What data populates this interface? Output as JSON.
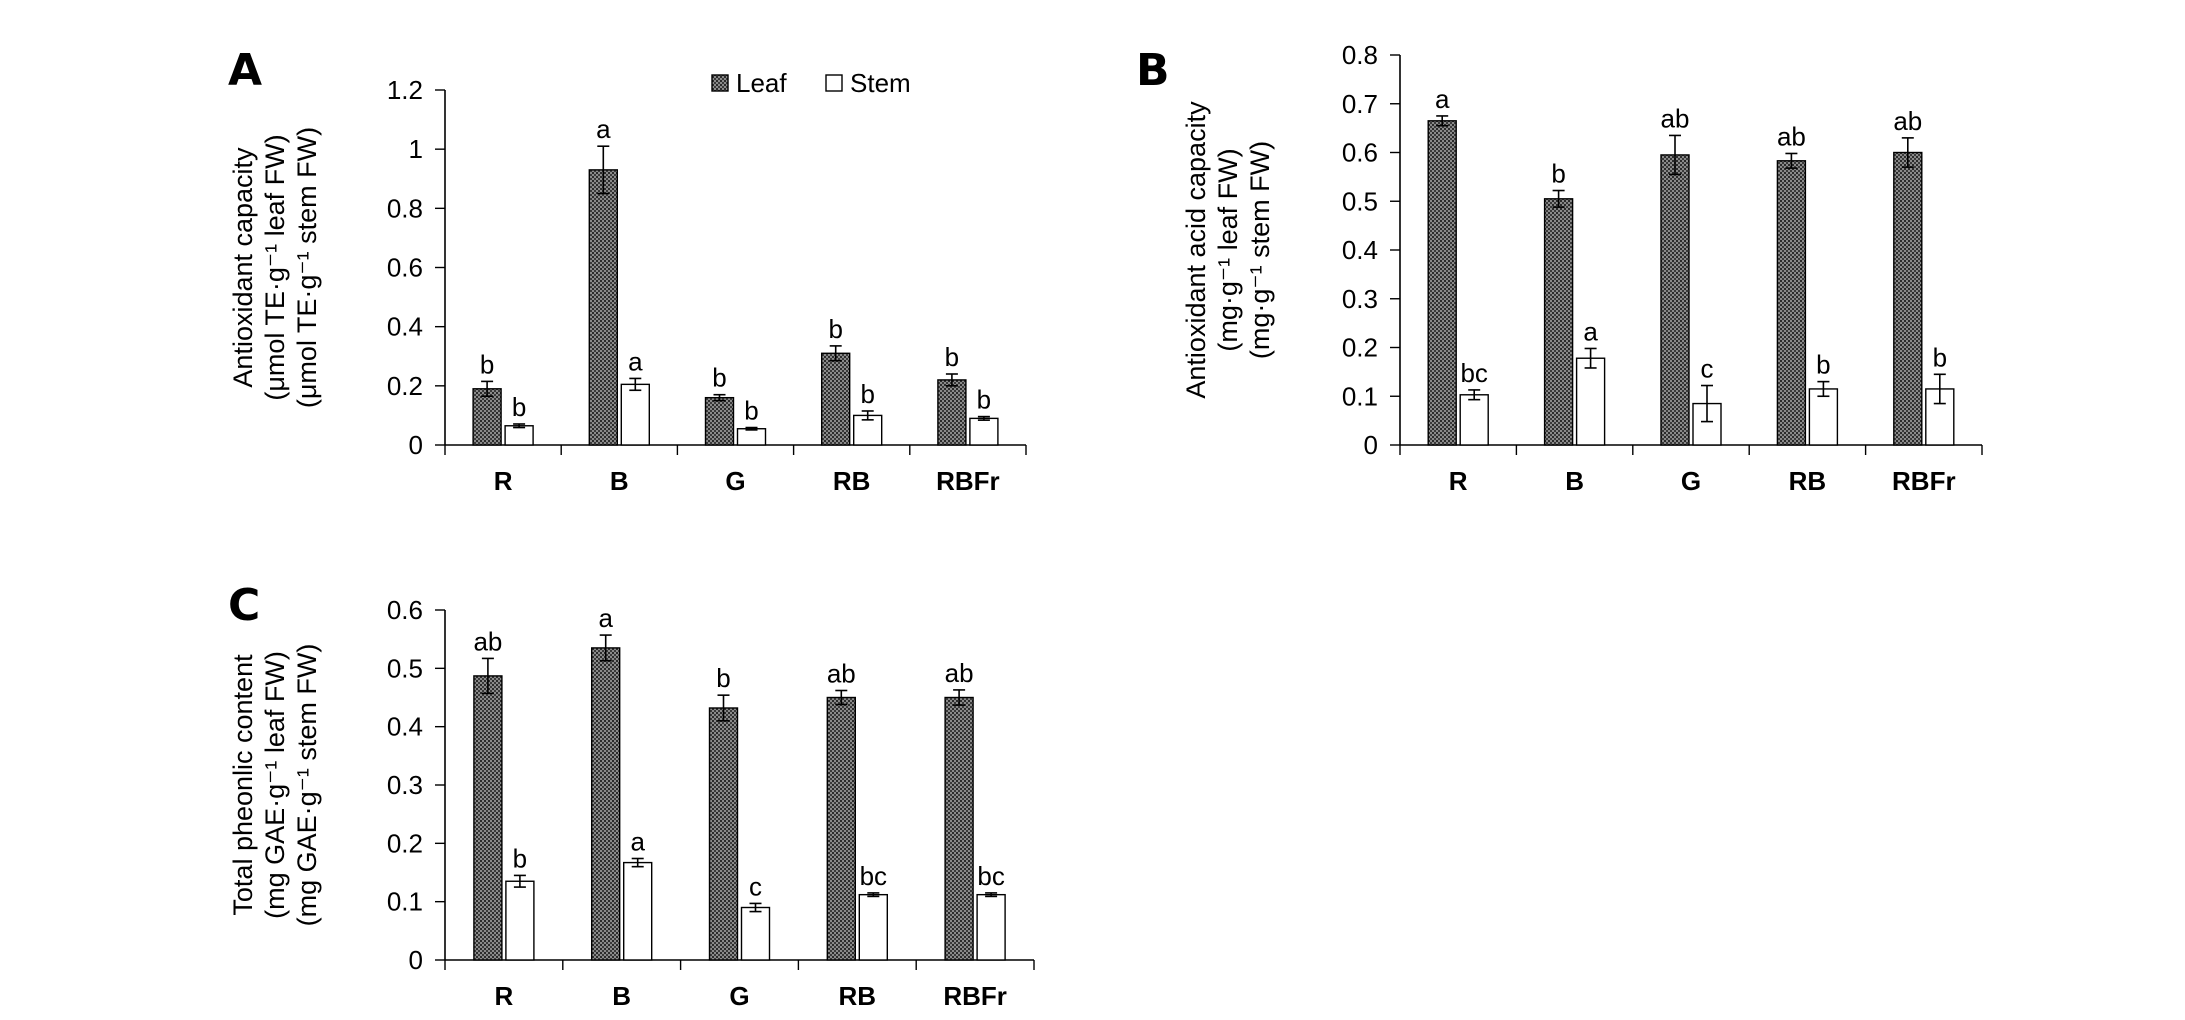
{
  "panels": [
    {
      "letter": "A",
      "chart_data": {
        "type": "bar",
        "categories": [
          "R",
          "B",
          "G",
          "RB",
          "RBFr"
        ],
        "ylim": [
          0,
          1.2
        ],
        "yticks": [
          "0",
          "0.2",
          "0.4",
          "0.6",
          "0.8",
          "1",
          "1.2"
        ],
        "ylabel": [
          "Antioxidant capacity",
          "(μmol TE·g⁻¹ leaf FW)",
          "(μmol TE·g⁻¹ stem FW)"
        ],
        "series": [
          {
            "name": "Leaf",
            "values": [
              0.19,
              0.93,
              0.16,
              0.31,
              0.22
            ],
            "errors": [
              0.025,
              0.08,
              0.01,
              0.025,
              0.02
            ],
            "letters": [
              "b",
              "a",
              "b",
              "b",
              "b"
            ]
          },
          {
            "name": "Stem",
            "values": [
              0.065,
              0.205,
              0.055,
              0.1,
              0.09
            ],
            "errors": [
              0.006,
              0.02,
              0.004,
              0.015,
              0.006
            ],
            "letters": [
              "b",
              "a",
              "b",
              "b",
              "b"
            ]
          }
        ],
        "legend": {
          "placement": "top-right",
          "items": [
            "Leaf",
            "Stem"
          ]
        }
      }
    },
    {
      "letter": "B",
      "chart_data": {
        "type": "bar",
        "categories": [
          "R",
          "B",
          "G",
          "RB",
          "RBFr"
        ],
        "ylim": [
          0,
          0.8
        ],
        "yticks": [
          "0",
          "0.1",
          "0.2",
          "0.3",
          "0.4",
          "0.5",
          "0.6",
          "0.7",
          "0.8"
        ],
        "ylabel": [
          "Antioxidant acid capacity",
          "(mg·g⁻¹ leaf FW)",
          "(mg·g⁻¹ stem FW)"
        ],
        "series": [
          {
            "name": "Leaf",
            "values": [
              0.665,
              0.505,
              0.595,
              0.583,
              0.6
            ],
            "errors": [
              0.01,
              0.017,
              0.04,
              0.015,
              0.03
            ],
            "letters": [
              "a",
              "b",
              "ab",
              "ab",
              "ab"
            ]
          },
          {
            "name": "Stem",
            "values": [
              0.103,
              0.178,
              0.085,
              0.115,
              0.115
            ],
            "errors": [
              0.01,
              0.02,
              0.037,
              0.015,
              0.03
            ],
            "letters": [
              "bc",
              "a",
              "c",
              "b",
              "b"
            ]
          }
        ]
      }
    },
    {
      "letter": "C",
      "chart_data": {
        "type": "bar",
        "categories": [
          "R",
          "B",
          "G",
          "RB",
          "RBFr"
        ],
        "ylim": [
          0,
          0.6
        ],
        "yticks": [
          "0",
          "0.1",
          "0.2",
          "0.3",
          "0.4",
          "0.5",
          "0.6"
        ],
        "ylabel": [
          "Total pheonlic content",
          "(mg GAE·g⁻¹ leaf FW)",
          "(mg GAE·g⁻¹ stem FW)"
        ],
        "series": [
          {
            "name": "Leaf",
            "values": [
              0.487,
              0.535,
              0.432,
              0.45,
              0.45
            ],
            "errors": [
              0.03,
              0.022,
              0.022,
              0.012,
              0.013
            ],
            "letters": [
              "ab",
              "a",
              "b",
              "ab",
              "ab"
            ]
          },
          {
            "name": "Stem",
            "values": [
              0.135,
              0.167,
              0.09,
              0.112,
              0.112
            ],
            "errors": [
              0.01,
              0.007,
              0.007,
              0.003,
              0.003
            ],
            "letters": [
              "b",
              "a",
              "c",
              "bc",
              "bc"
            ]
          }
        ]
      }
    }
  ]
}
